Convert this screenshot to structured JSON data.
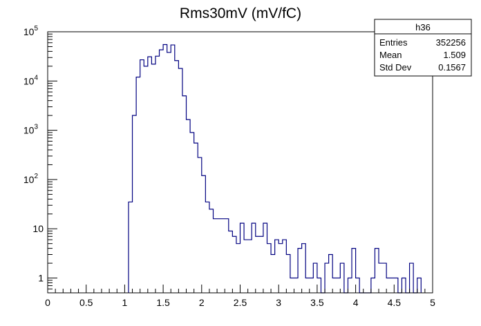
{
  "chart_data": {
    "type": "histogram",
    "title": "Rms30mV (mV/fC)",
    "xlabel": "",
    "ylabel": "",
    "xlim": [
      0,
      5
    ],
    "ylim": [
      0.5,
      100000
    ],
    "y_scale": "log",
    "grid": false,
    "line_color": "#000080",
    "bin_width": 0.05,
    "x_ticks": [
      "0",
      "0.5",
      "1",
      "1.5",
      "2",
      "2.5",
      "3",
      "3.5",
      "4",
      "4.5",
      "5"
    ],
    "y_ticks": [
      {
        "base": "1",
        "exp": ""
      },
      {
        "base": "10",
        "exp": ""
      },
      {
        "base": "10",
        "exp": "2"
      },
      {
        "base": "10",
        "exp": "3"
      },
      {
        "base": "10",
        "exp": "4"
      },
      {
        "base": "10",
        "exp": "5"
      }
    ],
    "bins": [
      {
        "x": 1.05,
        "y": 35
      },
      {
        "x": 1.1,
        "y": 2000
      },
      {
        "x": 1.15,
        "y": 12000
      },
      {
        "x": 1.2,
        "y": 27000
      },
      {
        "x": 1.25,
        "y": 20000
      },
      {
        "x": 1.3,
        "y": 31000
      },
      {
        "x": 1.35,
        "y": 22000
      },
      {
        "x": 1.4,
        "y": 32000
      },
      {
        "x": 1.45,
        "y": 43000
      },
      {
        "x": 1.5,
        "y": 55000
      },
      {
        "x": 1.55,
        "y": 38000
      },
      {
        "x": 1.6,
        "y": 54000
      },
      {
        "x": 1.65,
        "y": 26000
      },
      {
        "x": 1.7,
        "y": 18000
      },
      {
        "x": 1.75,
        "y": 5000
      },
      {
        "x": 1.8,
        "y": 1650
      },
      {
        "x": 1.85,
        "y": 900
      },
      {
        "x": 1.9,
        "y": 550
      },
      {
        "x": 1.95,
        "y": 280
      },
      {
        "x": 2.0,
        "y": 120
      },
      {
        "x": 2.05,
        "y": 35
      },
      {
        "x": 2.1,
        "y": 25
      },
      {
        "x": 2.15,
        "y": 16
      },
      {
        "x": 2.2,
        "y": 16
      },
      {
        "x": 2.25,
        "y": 16
      },
      {
        "x": 2.3,
        "y": 16
      },
      {
        "x": 2.35,
        "y": 9
      },
      {
        "x": 2.4,
        "y": 7
      },
      {
        "x": 2.45,
        "y": 5
      },
      {
        "x": 2.5,
        "y": 13
      },
      {
        "x": 2.55,
        "y": 6
      },
      {
        "x": 2.6,
        "y": 6
      },
      {
        "x": 2.65,
        "y": 13
      },
      {
        "x": 2.7,
        "y": 7
      },
      {
        "x": 2.75,
        "y": 7
      },
      {
        "x": 2.8,
        "y": 13
      },
      {
        "x": 2.85,
        "y": 5
      },
      {
        "x": 2.9,
        "y": 3
      },
      {
        "x": 2.95,
        "y": 6
      },
      {
        "x": 3.0,
        "y": 5
      },
      {
        "x": 3.05,
        "y": 6
      },
      {
        "x": 3.1,
        "y": 3
      },
      {
        "x": 3.15,
        "y": 1
      },
      {
        "x": 3.2,
        "y": 1
      },
      {
        "x": 3.25,
        "y": 4
      },
      {
        "x": 3.3,
        "y": 5
      },
      {
        "x": 3.35,
        "y": 1
      },
      {
        "x": 3.4,
        "y": 1
      },
      {
        "x": 3.45,
        "y": 2
      },
      {
        "x": 3.5,
        "y": 1
      },
      {
        "x": 3.55,
        "y": 0
      },
      {
        "x": 3.6,
        "y": 2
      },
      {
        "x": 3.65,
        "y": 3
      },
      {
        "x": 3.7,
        "y": 1
      },
      {
        "x": 3.75,
        "y": 1
      },
      {
        "x": 3.8,
        "y": 2
      },
      {
        "x": 3.85,
        "y": 0
      },
      {
        "x": 3.9,
        "y": 1
      },
      {
        "x": 3.95,
        "y": 4
      },
      {
        "x": 4.0,
        "y": 1
      },
      {
        "x": 4.05,
        "y": 0
      },
      {
        "x": 4.1,
        "y": 0
      },
      {
        "x": 4.15,
        "y": 0
      },
      {
        "x": 4.2,
        "y": 1
      },
      {
        "x": 4.25,
        "y": 4
      },
      {
        "x": 4.3,
        "y": 2
      },
      {
        "x": 4.35,
        "y": 2
      },
      {
        "x": 4.4,
        "y": 1
      },
      {
        "x": 4.45,
        "y": 1
      },
      {
        "x": 4.5,
        "y": 1
      },
      {
        "x": 4.55,
        "y": 0
      },
      {
        "x": 4.6,
        "y": 1
      },
      {
        "x": 4.65,
        "y": 0
      },
      {
        "x": 4.7,
        "y": 2
      },
      {
        "x": 4.75,
        "y": 0
      },
      {
        "x": 4.8,
        "y": 1
      }
    ],
    "stats": {
      "name": "h36",
      "rows": [
        {
          "label": "Entries",
          "value": "352256"
        },
        {
          "label": "Mean",
          "value": "1.509"
        },
        {
          "label": "Std Dev",
          "value": "0.1567"
        }
      ]
    }
  }
}
